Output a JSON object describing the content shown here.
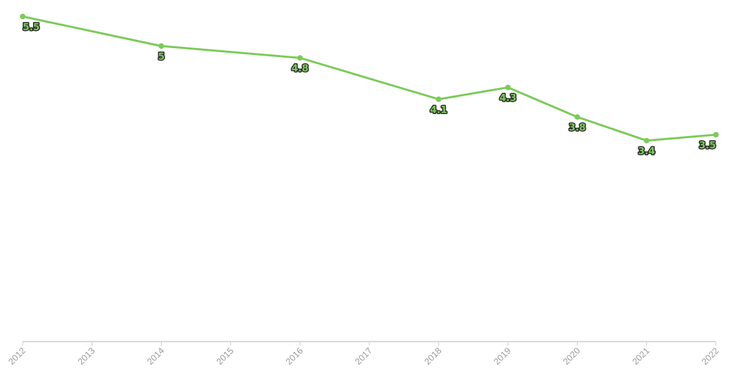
{
  "chart_data": {
    "type": "line",
    "title": "",
    "xlabel": "",
    "ylabel": "",
    "x": [
      "2012",
      "2013",
      "2014",
      "2015",
      "2016",
      "2017",
      "2018",
      "2019",
      "2020",
      "2021",
      "2022"
    ],
    "series": [
      {
        "points": [
          {
            "x": "2012",
            "y": 5.5
          },
          {
            "x": "2014",
            "y": 5
          },
          {
            "x": "2016",
            "y": 4.8
          },
          {
            "x": "2018",
            "y": 4.1
          },
          {
            "x": "2019",
            "y": 4.3
          },
          {
            "x": "2020",
            "y": 3.8
          },
          {
            "x": "2021",
            "y": 3.4
          },
          {
            "x": "2022",
            "y": 3.5
          }
        ]
      }
    ],
    "ylim": [
      0,
      5.5
    ],
    "grid": false,
    "legend": "none",
    "y_axis_visible": false,
    "data_labels": true,
    "colors": {
      "series": "#7acb58",
      "axis": "#cccccc",
      "tick_label": "#9a9a9a",
      "label_outline": "#2d2d2d"
    }
  }
}
